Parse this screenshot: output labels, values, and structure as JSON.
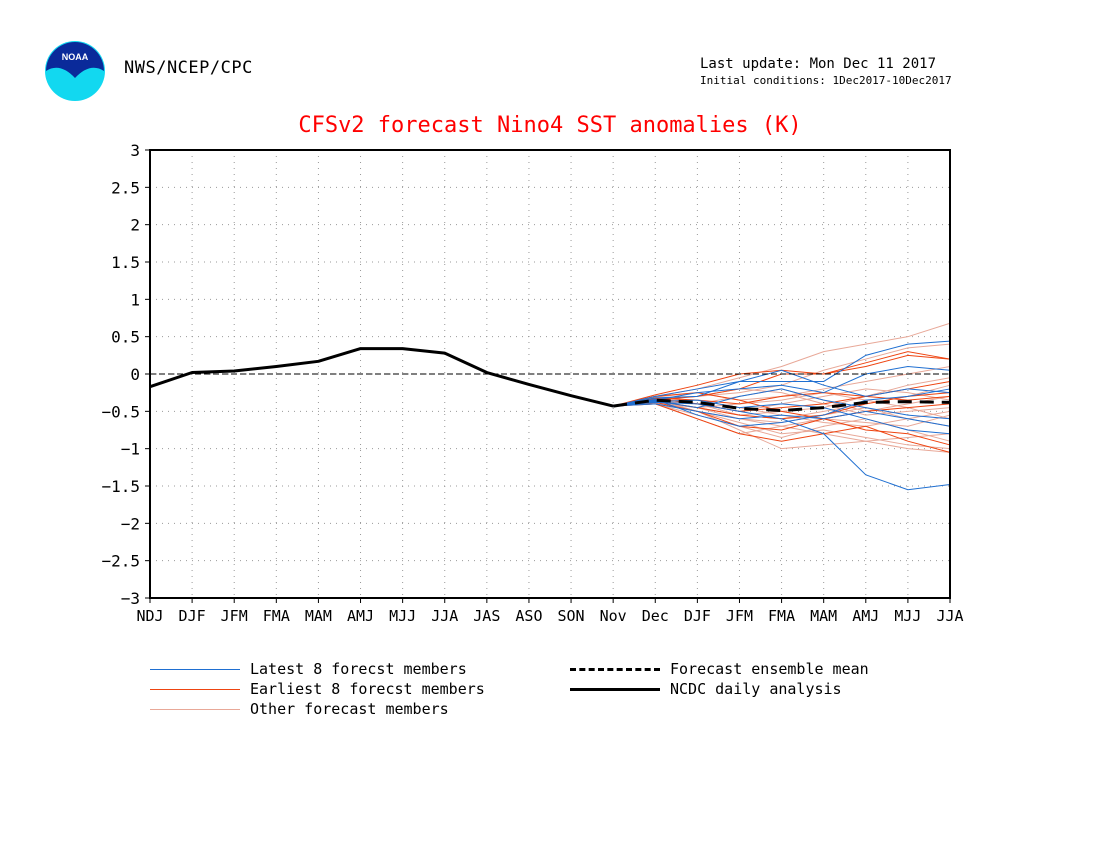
{
  "header": {
    "agency": "NWS/NCEP/CPC",
    "last_update": "Last update: Mon Dec 11 2017",
    "initial_conditions": "Initial conditions: 1Dec2017-10Dec2017",
    "logo_text": "NOAA"
  },
  "colors": {
    "title": "#ff0000",
    "latest": "#1f6fd1",
    "earliest": "#ee4411",
    "other": "#e8a898",
    "analysis": "#000000"
  },
  "legend": {
    "latest": "Latest 8 forecst members",
    "earliest": "Earliest 8 forecst members",
    "other": "Other forecast members",
    "mean": "Forecast ensemble mean",
    "analysis": "NCDC daily analysis"
  },
  "chart_data": {
    "type": "line",
    "title": "CFSv2 forecast Nino4 SST anomalies (K)",
    "categories": [
      "NDJ",
      "DJF",
      "JFM",
      "FMA",
      "MAM",
      "AMJ",
      "MJJ",
      "JJA",
      "JAS",
      "ASO",
      "SON",
      "Nov",
      "Dec",
      "DJF",
      "JFM",
      "FMA",
      "MAM",
      "AMJ",
      "MJJ",
      "JJA"
    ],
    "ylim": [
      -3,
      3
    ],
    "yticks": [
      3,
      2.5,
      2,
      1.5,
      1,
      0.5,
      0,
      -0.5,
      -1,
      -1.5,
      -2,
      -2.5,
      -3
    ],
    "grid": true,
    "analysis": {
      "name": "NCDC daily analysis",
      "values": [
        -0.17,
        0.02,
        0.04,
        0.1,
        0.17,
        0.34,
        0.34,
        0.28,
        0.02,
        -0.14,
        -0.29,
        -0.43,
        null,
        null,
        null,
        null,
        null,
        null,
        null,
        null
      ]
    },
    "ensemble_mean": {
      "name": "Forecast ensemble mean",
      "values": [
        null,
        null,
        null,
        null,
        null,
        null,
        null,
        null,
        null,
        null,
        null,
        -0.43,
        -0.35,
        -0.38,
        -0.46,
        -0.49,
        -0.45,
        -0.38,
        -0.37,
        -0.38
      ]
    },
    "member_groups": [
      {
        "name": "Latest 8 forecst members",
        "color_key": "latest",
        "members": [
          [
            -0.43,
            -0.3,
            -0.2,
            -0.1,
            -0.1,
            -0.1,
            0.25,
            0.4,
            0.44
          ],
          [
            -0.43,
            -0.35,
            -0.25,
            -0.2,
            -0.15,
            -0.25,
            0.0,
            0.1,
            0.05
          ],
          [
            -0.43,
            -0.38,
            -0.4,
            -0.5,
            -0.6,
            -0.8,
            -1.35,
            -1.55,
            -1.48
          ],
          [
            -0.43,
            -0.32,
            -0.3,
            -0.1,
            0.05,
            -0.15,
            -0.3,
            -0.2,
            -0.25
          ],
          [
            -0.43,
            -0.4,
            -0.5,
            -0.6,
            -0.55,
            -0.6,
            -0.5,
            -0.6,
            -0.7
          ],
          [
            -0.43,
            -0.36,
            -0.45,
            -0.3,
            -0.2,
            -0.35,
            -0.45,
            -0.55,
            -0.6
          ],
          [
            -0.43,
            -0.34,
            -0.55,
            -0.7,
            -0.65,
            -0.55,
            -0.35,
            -0.3,
            -0.2
          ],
          [
            -0.43,
            -0.37,
            -0.35,
            -0.45,
            -0.4,
            -0.45,
            -0.6,
            -0.75,
            -0.8
          ]
        ]
      },
      {
        "name": "Earliest 8 forecst members",
        "color_key": "earliest",
        "members": [
          [
            -0.43,
            -0.28,
            -0.15,
            0.0,
            0.05,
            0.0,
            0.15,
            0.3,
            0.2
          ],
          [
            -0.43,
            -0.35,
            -0.3,
            -0.2,
            0.0,
            0.0,
            0.1,
            0.25,
            0.2
          ],
          [
            -0.43,
            -0.4,
            -0.6,
            -0.8,
            -0.9,
            -0.8,
            -0.7,
            -0.9,
            -1.05
          ],
          [
            -0.43,
            -0.33,
            -0.4,
            -0.5,
            -0.45,
            -0.4,
            -0.3,
            -0.2,
            -0.1
          ],
          [
            -0.43,
            -0.38,
            -0.5,
            -0.7,
            -0.75,
            -0.6,
            -0.5,
            -0.45,
            -0.4
          ],
          [
            -0.43,
            -0.3,
            -0.25,
            -0.35,
            -0.5,
            -0.6,
            -0.75,
            -0.8,
            -0.95
          ],
          [
            -0.43,
            -0.36,
            -0.45,
            -0.55,
            -0.6,
            -0.55,
            -0.4,
            -0.3,
            -0.25
          ],
          [
            -0.43,
            -0.32,
            -0.35,
            -0.4,
            -0.3,
            -0.25,
            -0.3,
            -0.35,
            -0.3
          ]
        ]
      },
      {
        "name": "Other forecast members",
        "color_key": "other",
        "members": [
          [
            -0.43,
            -0.3,
            -0.2,
            -0.05,
            0.1,
            0.3,
            0.4,
            0.5,
            0.68
          ],
          [
            -0.43,
            -0.35,
            -0.5,
            -0.75,
            -1.0,
            -0.95,
            -0.9,
            -1.0,
            -1.05
          ],
          [
            -0.43,
            -0.4,
            -0.55,
            -0.7,
            -0.85,
            -0.7,
            -0.6,
            -0.75,
            -0.9
          ],
          [
            -0.43,
            -0.33,
            -0.3,
            -0.25,
            -0.15,
            0.05,
            0.2,
            0.35,
            0.4
          ],
          [
            -0.43,
            -0.38,
            -0.45,
            -0.6,
            -0.65,
            -0.55,
            -0.45,
            -0.6,
            -0.7
          ],
          [
            -0.43,
            -0.36,
            -0.4,
            -0.3,
            -0.2,
            -0.35,
            -0.5,
            -0.4,
            -0.3
          ],
          [
            -0.43,
            -0.34,
            -0.5,
            -0.65,
            -0.8,
            -0.75,
            -0.85,
            -0.95,
            -1.0
          ],
          [
            -0.43,
            -0.31,
            -0.25,
            -0.35,
            -0.3,
            -0.2,
            -0.1,
            0.0,
            0.1
          ],
          [
            -0.43,
            -0.37,
            -0.45,
            -0.55,
            -0.5,
            -0.45,
            -0.3,
            -0.15,
            -0.05
          ],
          [
            -0.43,
            -0.39,
            -0.6,
            -0.8,
            -0.7,
            -0.6,
            -0.65,
            -0.7,
            -0.55
          ],
          [
            -0.43,
            -0.35,
            -0.35,
            -0.45,
            -0.55,
            -0.65,
            -0.7,
            -0.6,
            -0.5
          ],
          [
            -0.43,
            -0.32,
            -0.4,
            -0.5,
            -0.4,
            -0.3,
            -0.2,
            -0.25,
            -0.35
          ],
          [
            -0.43,
            -0.36,
            -0.5,
            -0.6,
            -0.7,
            -0.8,
            -0.9,
            -0.85,
            -0.8
          ],
          [
            -0.43,
            -0.34,
            -0.3,
            -0.2,
            -0.25,
            -0.4,
            -0.55,
            -0.5,
            -0.45
          ],
          [
            -0.43,
            -0.38,
            -0.45,
            -0.4,
            -0.35,
            -0.25,
            -0.35,
            -0.45,
            -0.6
          ],
          [
            -0.43,
            -0.33,
            -0.4,
            -0.55,
            -0.6,
            -0.5,
            -0.4,
            -0.3,
            -0.15
          ]
        ]
      }
    ]
  }
}
